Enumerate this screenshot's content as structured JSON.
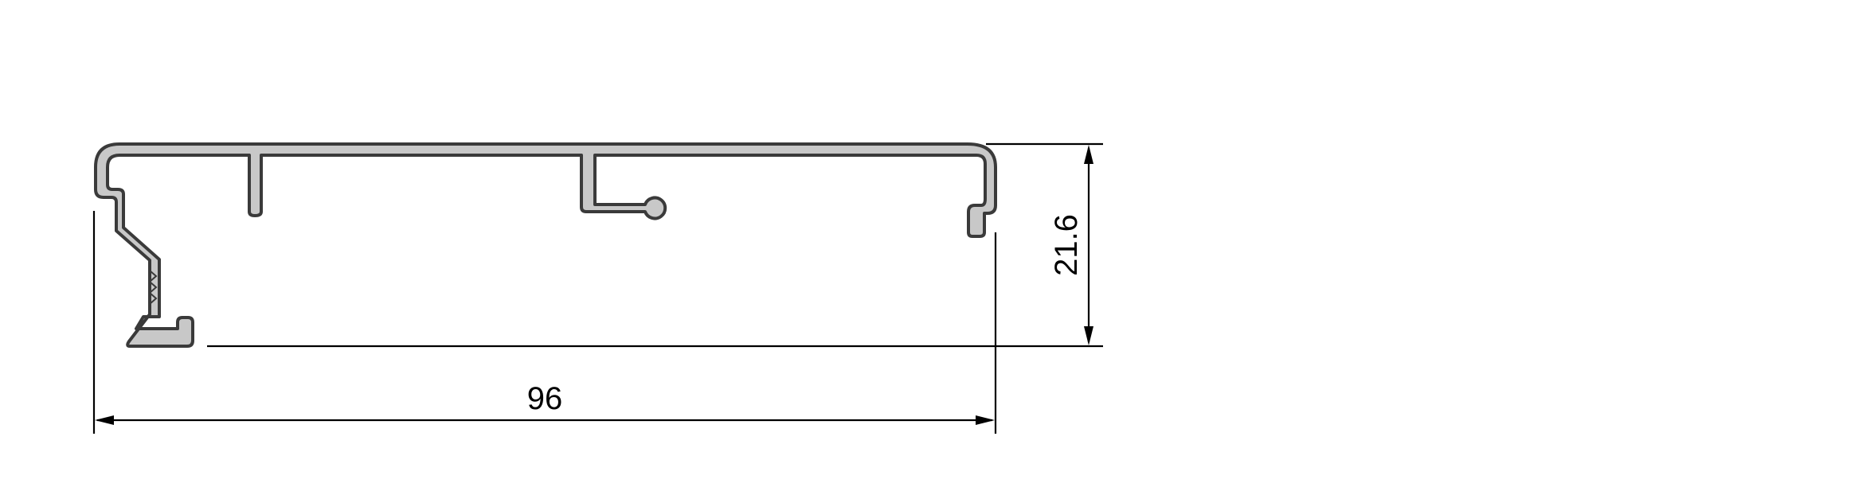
{
  "drawing": {
    "dimensions": {
      "width_value": "96",
      "height_value": "21.6"
    },
    "colors": {
      "profile_fill": "#c8c8c8",
      "profile_stroke": "#3a3a3a",
      "dimension_line": "#000000",
      "background": "#ffffff"
    }
  }
}
